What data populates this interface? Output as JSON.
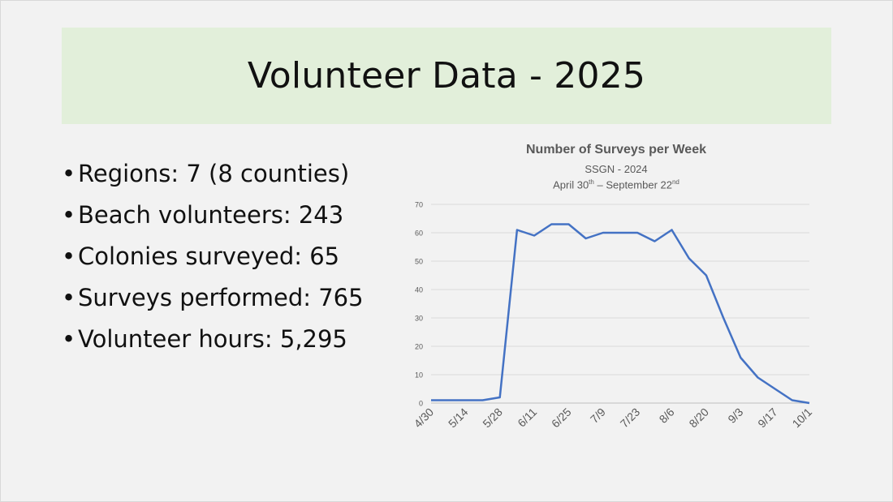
{
  "slide": {
    "title": "Volunteer Data - 2025",
    "bullet_symbol": "•",
    "bullets": [
      "Regions: 7 (8 counties)",
      "Beach volunteers: 243",
      "Colonies surveyed: 65",
      "Surveys performed: 765",
      "Volunteer hours: 5,295"
    ]
  },
  "chart_data": {
    "type": "line",
    "title": "Number of Surveys per Week",
    "subtitle": "SSGN - 2024",
    "subtitle2": {
      "start": "April 30",
      "start_sup": "th",
      "separator": " – ",
      "end": "September 22",
      "end_sup": "nd"
    },
    "xlabel": "",
    "ylabel": "",
    "ylim": [
      0,
      70
    ],
    "yticks": [
      0,
      10,
      20,
      30,
      40,
      50,
      60,
      70
    ],
    "grid": true,
    "legend": "none",
    "line_color": "#4472c4",
    "x": [
      "4/30",
      "5/7",
      "5/14",
      "5/21",
      "5/28",
      "6/4",
      "6/11",
      "6/18",
      "6/25",
      "7/2",
      "7/9",
      "7/16",
      "7/23",
      "7/30",
      "8/6",
      "8/13",
      "8/20",
      "8/27",
      "9/3",
      "9/10",
      "9/17",
      "9/24",
      "10/1"
    ],
    "x_tick_labels": [
      "4/30",
      "5/14",
      "5/28",
      "6/11",
      "6/25",
      "7/9",
      "7/23",
      "8/6",
      "8/20",
      "9/3",
      "9/17",
      "10/1"
    ],
    "series": [
      {
        "values": [
          1,
          1,
          1,
          1,
          2,
          61,
          59,
          63,
          63,
          58,
          60,
          60,
          60,
          57,
          61,
          51,
          45,
          30,
          16,
          9,
          5,
          1,
          0
        ]
      }
    ]
  }
}
